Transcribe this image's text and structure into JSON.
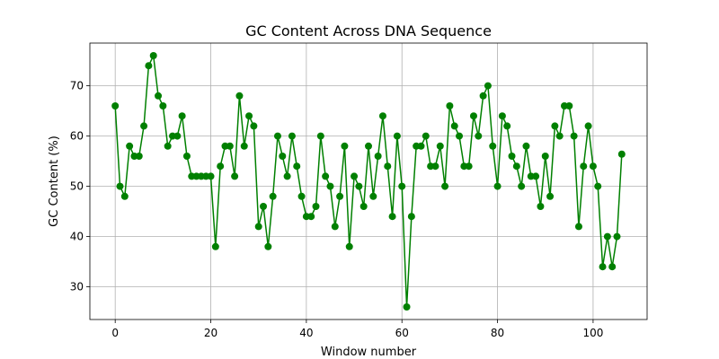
{
  "chart_data": {
    "type": "line",
    "title": "GC Content Across DNA Sequence",
    "xlabel": "Window number",
    "ylabel": "GC Content (%)",
    "xlim": [
      -5.3,
      111.3
    ],
    "ylim": [
      23.5,
      78.5
    ],
    "x_ticks": [
      0,
      20,
      40,
      60,
      80,
      100
    ],
    "y_ticks": [
      30,
      40,
      50,
      60,
      70
    ],
    "grid": true,
    "color": "#008000",
    "marker": "circle",
    "series": [
      {
        "x": [
          0,
          1,
          2,
          3,
          4,
          5,
          6,
          7,
          8,
          9,
          10,
          11,
          12,
          13,
          14,
          15,
          16,
          17,
          18,
          19,
          20,
          21,
          22,
          23,
          24,
          25,
          26,
          27,
          28,
          29,
          30,
          31,
          32,
          33,
          34,
          35,
          36,
          37,
          38,
          39,
          40,
          41,
          42,
          43,
          44,
          45,
          46,
          47,
          48,
          49,
          50,
          51,
          52,
          53,
          54,
          55,
          56,
          57,
          58,
          59,
          60,
          61,
          62,
          63,
          64,
          65,
          66,
          67,
          68,
          69,
          70,
          71,
          72,
          73,
          74,
          75,
          76,
          77,
          78,
          79,
          80,
          81,
          82,
          83,
          84,
          85,
          86,
          87,
          88,
          89,
          90,
          91,
          92,
          93,
          94,
          95,
          96,
          97,
          98,
          99,
          100,
          101,
          102,
          103,
          104,
          105,
          106
        ],
        "values": [
          66,
          50,
          48,
          58,
          56,
          56,
          62,
          74,
          76,
          68,
          66,
          58,
          60,
          60,
          64,
          56,
          52,
          52,
          52,
          52,
          52,
          38,
          54,
          58,
          58,
          52,
          68,
          58,
          64,
          62,
          42,
          46,
          38,
          48,
          60,
          56,
          52,
          60,
          54,
          48,
          44,
          44,
          46,
          60,
          52,
          50,
          42,
          48,
          58,
          38,
          52,
          50,
          46,
          58,
          48,
          56,
          64,
          54,
          44,
          60,
          50,
          26,
          44,
          58,
          58,
          60,
          54,
          54,
          58,
          50,
          66,
          62,
          60,
          54,
          54,
          64,
          60,
          68,
          70,
          58,
          50,
          64,
          62,
          56,
          54,
          50,
          58,
          52,
          52,
          46,
          56,
          48,
          62,
          60,
          66,
          66,
          60,
          42,
          54,
          62,
          54,
          50,
          34,
          40,
          34,
          40,
          56.4
        ]
      }
    ]
  }
}
